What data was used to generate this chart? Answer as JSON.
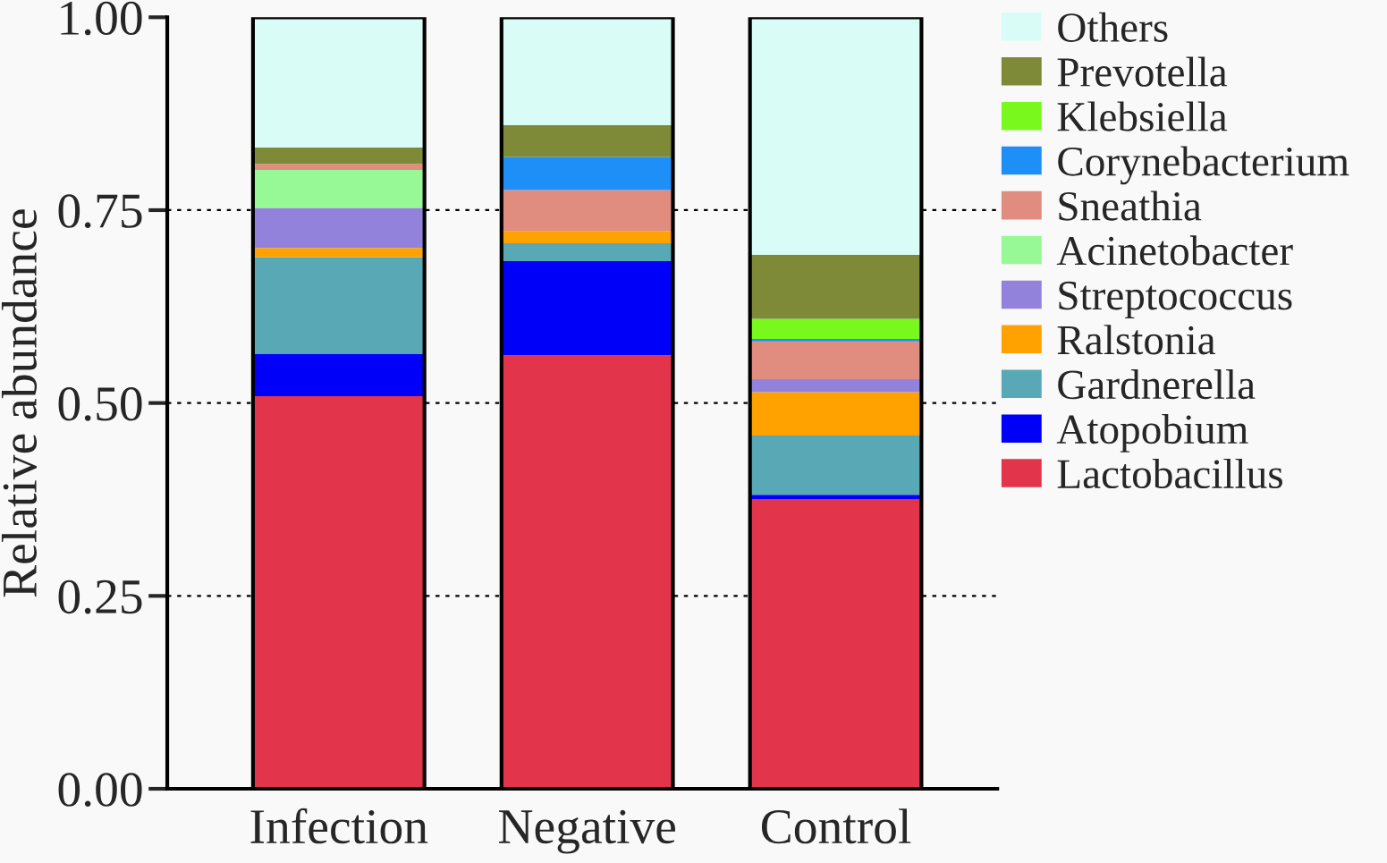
{
  "chart_data": {
    "type": "bar",
    "stacked": true,
    "ylabel": "Relative abundance",
    "categories": [
      "Infection",
      "Negative",
      "Control"
    ],
    "series": [
      {
        "name": "Lactobacillus",
        "color": "#e2344a",
        "values": [
          0.509,
          0.562,
          0.375
        ]
      },
      {
        "name": "Atopobium",
        "color": "#0000fa",
        "values": [
          0.055,
          0.122,
          0.006
        ]
      },
      {
        "name": "Gardnerella",
        "color": "#58a9b5",
        "values": [
          0.125,
          0.023,
          0.077
        ]
      },
      {
        "name": "Ralstonia",
        "color": "#ffa200",
        "values": [
          0.012,
          0.016,
          0.056
        ]
      },
      {
        "name": "Streptococcus",
        "color": "#9382dc",
        "values": [
          0.052,
          null,
          0.017
        ]
      },
      {
        "name": "Acinetobacter",
        "color": "#96f995",
        "values": [
          0.049,
          null,
          null
        ]
      },
      {
        "name": "Sneathia",
        "color": "#e08c7e",
        "values": [
          0.008,
          0.053,
          0.049
        ]
      },
      {
        "name": "Corynebacterium",
        "color": "#1f8ff8",
        "values": [
          null,
          0.043,
          0.003
        ]
      },
      {
        "name": "Klebsiella",
        "color": "#78f81c",
        "values": [
          null,
          null,
          0.026
        ]
      },
      {
        "name": "Prevotella",
        "color": "#7f8a38",
        "values": [
          0.021,
          0.041,
          0.083
        ]
      },
      {
        "name": "Others",
        "color": "#d9fdf6",
        "values": [
          0.169,
          0.14,
          0.308
        ]
      }
    ],
    "ylim": [
      0,
      1
    ],
    "yticks": [
      {
        "value": 0,
        "label": "0.00"
      },
      {
        "value": 0.25,
        "label": "0.25"
      },
      {
        "value": 0.5,
        "label": "0.50"
      },
      {
        "value": 0.75,
        "label": "0.75"
      },
      {
        "value": 1,
        "label": "1.00"
      }
    ],
    "grid": "y",
    "legend": "top right"
  }
}
